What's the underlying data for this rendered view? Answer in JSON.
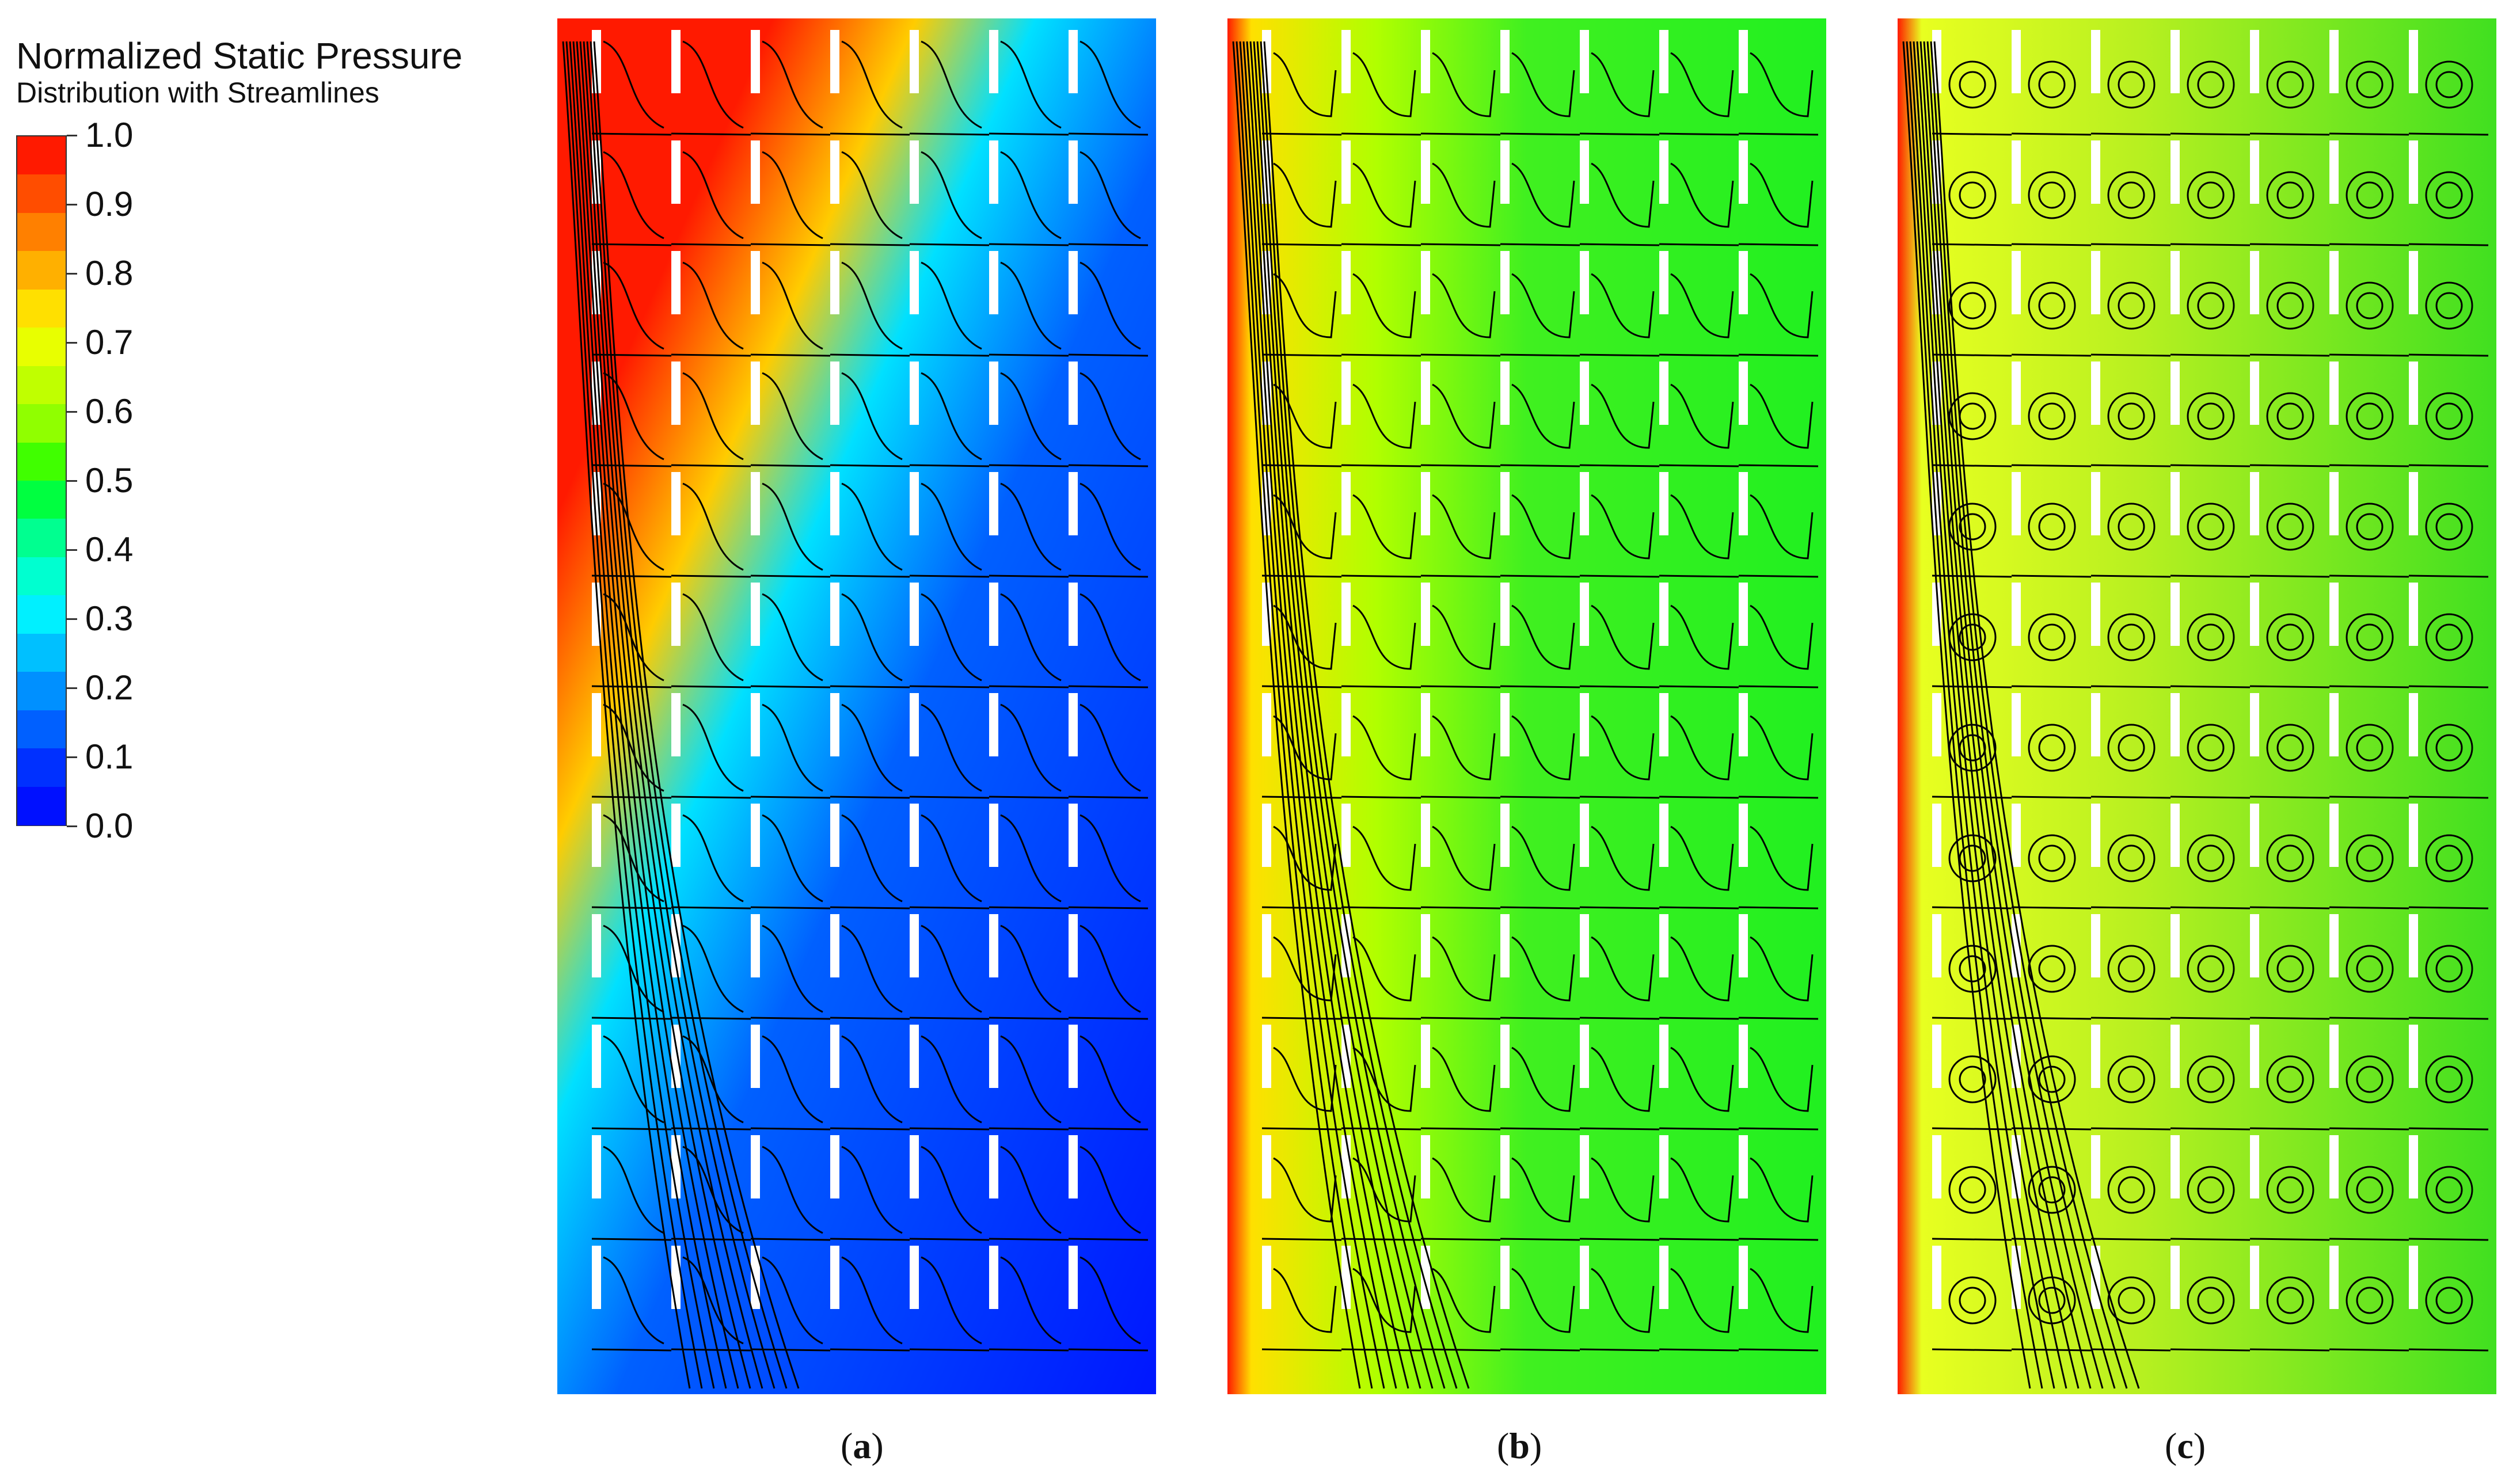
{
  "legend": {
    "title_line1": "Normalized Static Pressure",
    "title_line2": "Distribution with Streamlines",
    "ticks": [
      "1.0",
      "0.9",
      "0.8",
      "0.7",
      "0.6",
      "0.5",
      "0.4",
      "0.3",
      "0.2",
      "0.1",
      "0.0"
    ],
    "colors": [
      "#ff1a00",
      "#ff4d00",
      "#ff8000",
      "#ffb000",
      "#ffe000",
      "#e8ff00",
      "#c0ff00",
      "#90ff00",
      "#40ff00",
      "#00ff40",
      "#00ff90",
      "#00ffd0",
      "#00f0ff",
      "#00c0ff",
      "#0090ff",
      "#0060ff",
      "#0030ff",
      "#0010ff"
    ]
  },
  "panels": [
    {
      "caption": "a",
      "paren_open": "(",
      "paren_close": ")"
    },
    {
      "caption": "b",
      "paren_open": "(",
      "paren_close": ")"
    },
    {
      "caption": "c",
      "paren_open": "(",
      "paren_close": ")"
    }
  ]
}
